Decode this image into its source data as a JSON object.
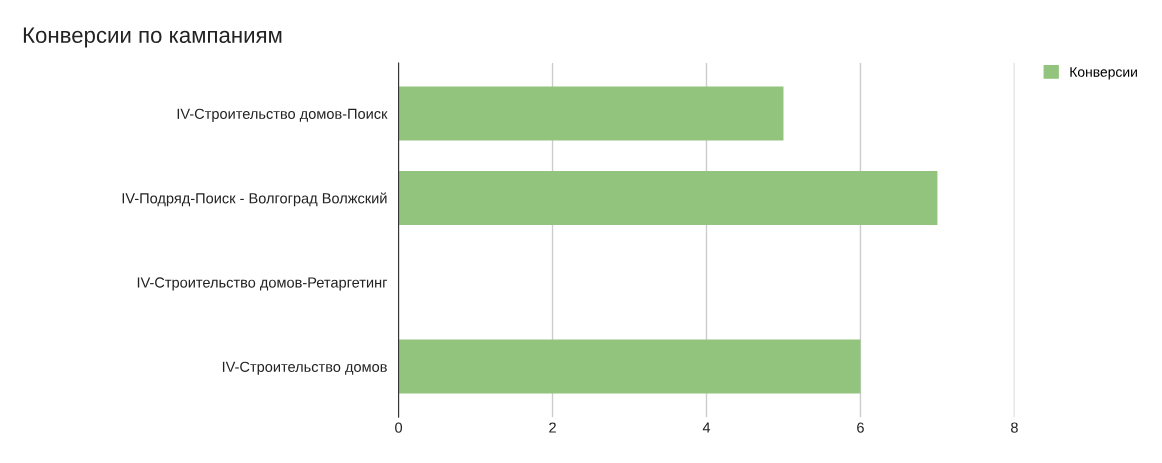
{
  "chart_data": {
    "type": "bar",
    "title": "Конверсии по кампаниям",
    "orientation": "horizontal",
    "categories": [
      "IV-Строительство домов-Поиск",
      "IV-Подряд-Поиск - Волгоград Волжский",
      "IV-Строительство домов-Ретаргетинг",
      "IV-Строительство домов"
    ],
    "series": [
      {
        "name": "Конверсии",
        "color": "#93c47d",
        "values": [
          5,
          7,
          0,
          6
        ]
      }
    ],
    "xlim": [
      0,
      8
    ],
    "xticks": [
      0,
      2,
      4,
      6,
      8
    ],
    "grid": "x",
    "legend": "top right"
  }
}
